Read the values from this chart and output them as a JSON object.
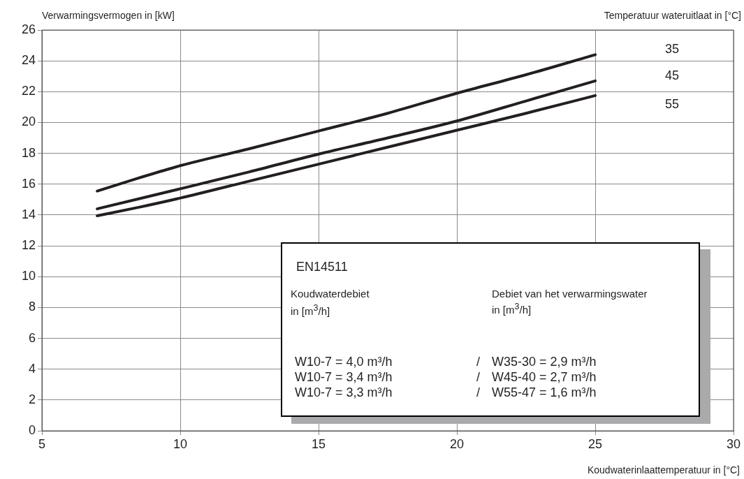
{
  "chart_data": {
    "type": "line",
    "xlabel": "Koudwaterinlaattemperatuur in [°C]",
    "ylabel": "Verwarmingsvermogen in [kW]",
    "legend_title": "Temperatuur wateruitlaat in [°C]",
    "x": [
      7,
      8.5,
      10,
      12.5,
      15,
      17.5,
      20,
      22.5,
      25
    ],
    "series": [
      {
        "name": "35",
        "color": "#231f20",
        "values": [
          15.55,
          16.4,
          17.2,
          18.3,
          19.45,
          20.6,
          21.9,
          23.1,
          24.4
        ]
      },
      {
        "name": "45",
        "color": "#231f20",
        "values": [
          14.4,
          15.05,
          15.7,
          16.8,
          17.95,
          19.0,
          20.1,
          21.4,
          22.7
        ]
      },
      {
        "name": "55",
        "color": "#231f20",
        "values": [
          13.95,
          14.5,
          15.1,
          16.2,
          17.3,
          18.4,
          19.5,
          20.6,
          21.75
        ]
      }
    ],
    "xlim": [
      5,
      30
    ],
    "xticks": [
      5,
      10,
      15,
      20,
      25,
      30
    ],
    "ylim": [
      0,
      26
    ],
    "yticks": [
      0,
      2,
      4,
      6,
      8,
      10,
      12,
      14,
      16,
      18,
      20,
      22,
      24,
      26
    ],
    "grid": true,
    "legend": false,
    "marker": "none",
    "line_style": "solid",
    "annotations": [
      "EN14511",
      "Koudwaterdebiet",
      "in [m$^{3}$/h]",
      "Debiet van het verwarmingswater",
      "in [m$^{3}$/h]",
      "W10-7 = 4,0 m³/h",
      "/",
      "W35-30 = 2,9 m³/h",
      "W10-7 = 3,4 m³/h",
      "/",
      "W45-40 = 2,7 m³/h",
      "W10-7 = 3,3 m³/h",
      "/",
      "W55-47 = 1,6 m³/h"
    ]
  }
}
